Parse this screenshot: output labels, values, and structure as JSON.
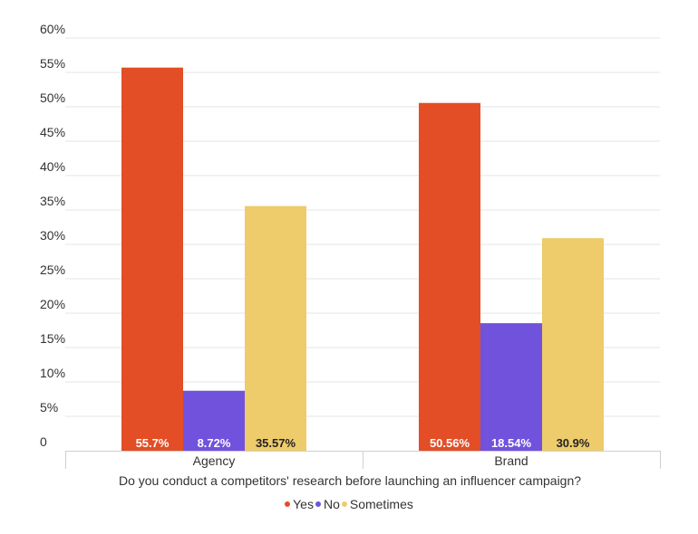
{
  "chart_data": {
    "type": "bar",
    "categories": [
      "Agency",
      "Brand"
    ],
    "series": [
      {
        "name": "Yes",
        "color": "#e34e26",
        "values": [
          55.7,
          50.56
        ],
        "labels": [
          "55.7%",
          "50.56%"
        ]
      },
      {
        "name": "No",
        "color": "#7052dd",
        "values": [
          8.72,
          18.54
        ],
        "labels": [
          "8.72%",
          "18.54%"
        ]
      },
      {
        "name": "Sometimes",
        "color": "#eecb6b",
        "values": [
          35.57,
          30.9
        ],
        "labels": [
          "35.57%",
          "30.9%"
        ]
      }
    ],
    "xlabel": "Do you conduct a competitors' research before launching an influencer campaign?",
    "ylabel": "",
    "ylim": [
      0,
      60
    ],
    "yticks": [
      0,
      5,
      10,
      15,
      20,
      25,
      30,
      35,
      40,
      45,
      50,
      55,
      60
    ],
    "ytick_labels": [
      "0",
      "5%",
      "10%",
      "15%",
      "20%",
      "25%",
      "30%",
      "35%",
      "40%",
      "45%",
      "50%",
      "55%",
      "60%"
    ],
    "grid": true,
    "legend_position": "bottom"
  }
}
